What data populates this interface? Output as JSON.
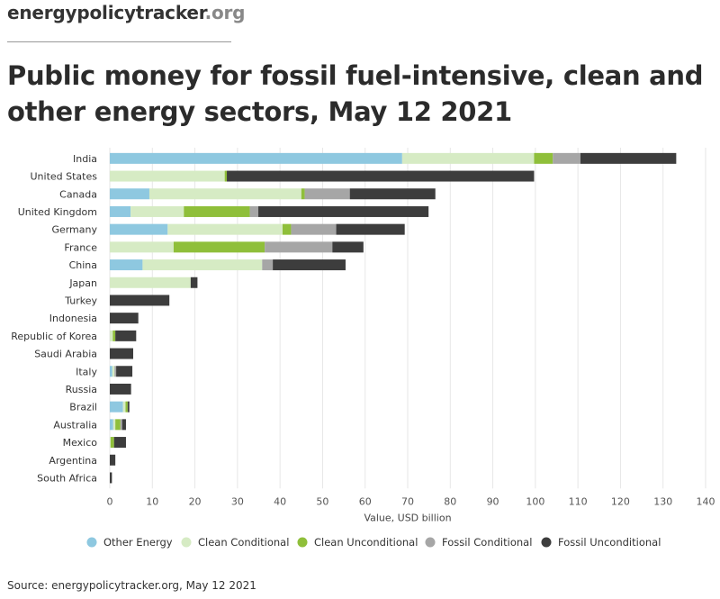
{
  "brand": {
    "name": "energypolicytracker",
    "tld": ".org"
  },
  "title": "Public money for fossil fuel-intensive, clean and other energy sectors, May 12 2021",
  "source": "Source: energypolicytracker.org, May 12 2021",
  "chart_data": {
    "type": "bar",
    "orientation": "horizontal",
    "stacked": true,
    "xlabel": "Value, USD billion",
    "ylabel": "",
    "xlim": [
      0,
      140
    ],
    "xticks": [
      0,
      10,
      20,
      30,
      40,
      50,
      60,
      70,
      80,
      90,
      100,
      110,
      120,
      130,
      140
    ],
    "grid": "vertical",
    "legend": "bottom",
    "categories": [
      "India",
      "United States",
      "Canada",
      "United Kingdom",
      "Germany",
      "France",
      "China",
      "Japan",
      "Turkey",
      "Indonesia",
      "Republic of Korea",
      "Saudi Arabia",
      "Italy",
      "Russia",
      "Brazil",
      "Australia",
      "Mexico",
      "Argentina",
      "South Africa"
    ],
    "series": [
      {
        "name": "Other Energy",
        "color": "#8ec8e0",
        "values": [
          68.7,
          0,
          9.3,
          4.9,
          13.6,
          0,
          7.7,
          0,
          0,
          0,
          0,
          0,
          0.6,
          0,
          3.1,
          0.8,
          0,
          0,
          0
        ]
      },
      {
        "name": "Clean Conditional",
        "color": "#d6ebc4",
        "values": [
          31.0,
          27.0,
          35.7,
          12.5,
          27.0,
          15.0,
          28.1,
          19.0,
          0,
          0,
          0.7,
          0,
          0.5,
          0,
          0.6,
          0.5,
          0.2,
          0,
          0
        ]
      },
      {
        "name": "Clean Unconditional",
        "color": "#8fbf3a",
        "values": [
          4.4,
          0.5,
          0.8,
          15.5,
          2.0,
          21.4,
          0,
          0,
          0,
          0,
          0.6,
          0,
          0,
          0,
          0.5,
          1.2,
          0.8,
          0,
          0
        ]
      },
      {
        "name": "Fossil Conditional",
        "color": "#a6a6a6",
        "values": [
          6.5,
          0,
          10.6,
          2.0,
          10.6,
          15.9,
          2.5,
          0,
          0,
          0,
          0,
          0,
          0.4,
          0,
          0,
          0.4,
          0,
          0,
          0
        ]
      },
      {
        "name": "Fossil Unconditional",
        "color": "#3d3d3d",
        "values": [
          22.5,
          72.2,
          20.1,
          40.0,
          16.1,
          7.3,
          17.1,
          1.6,
          14.0,
          6.7,
          4.9,
          5.5,
          3.8,
          5.0,
          0.4,
          0.9,
          2.8,
          1.3,
          0.5
        ]
      }
    ]
  }
}
